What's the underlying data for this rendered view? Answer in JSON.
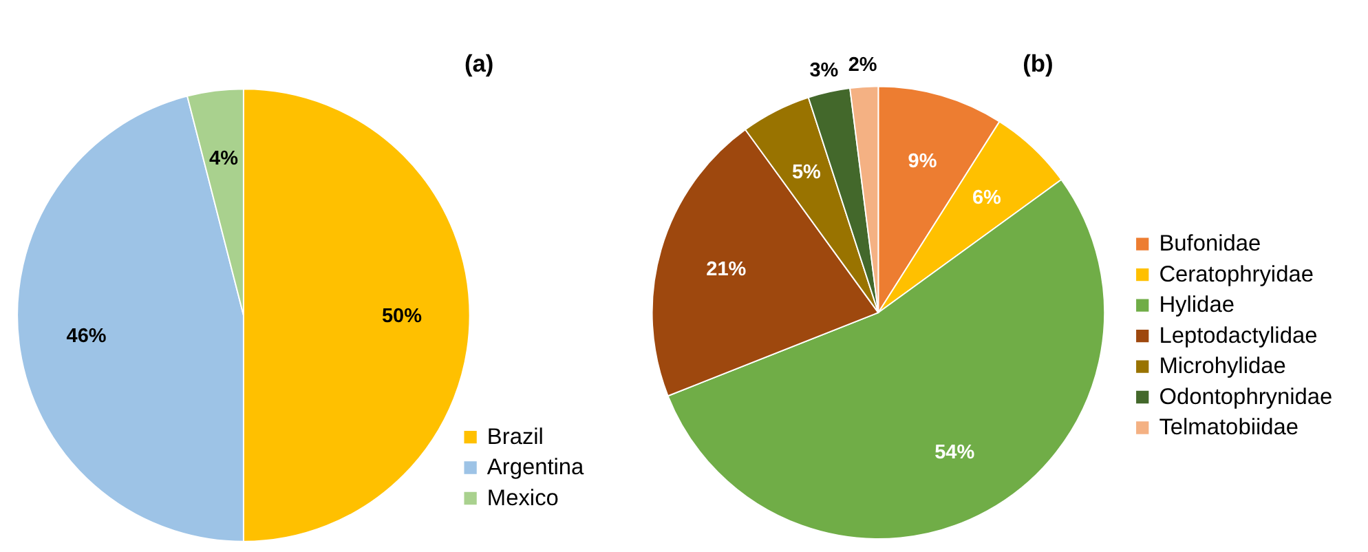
{
  "chart_data": [
    {
      "type": "pie",
      "title": "(a)",
      "categories": [
        "Brazil",
        "Argentina",
        "Mexico"
      ],
      "values": [
        50,
        46,
        4
      ],
      "colors": [
        "#ffc000",
        "#9dc3e6",
        "#a9d18e"
      ],
      "value_labels": [
        "50%",
        "46%",
        "4%"
      ],
      "legend": "bottom right"
    },
    {
      "type": "pie",
      "title": "(b)",
      "categories": [
        "Bufonidae",
        "Ceratophryidae",
        "Hylidae",
        "Leptodactylidae",
        "Microhylidae",
        "Odontophrynidae",
        "Telmatobiidae"
      ],
      "values": [
        9,
        6,
        54,
        21,
        5,
        3,
        2
      ],
      "colors": [
        "#ed7d31",
        "#ffc000",
        "#70ad47",
        "#9e480e",
        "#997300",
        "#43682b",
        "#f4b183"
      ],
      "value_labels": [
        "9%",
        "6%",
        "54%",
        "21%",
        "5%",
        "3%",
        "2%"
      ],
      "legend": "right"
    }
  ]
}
